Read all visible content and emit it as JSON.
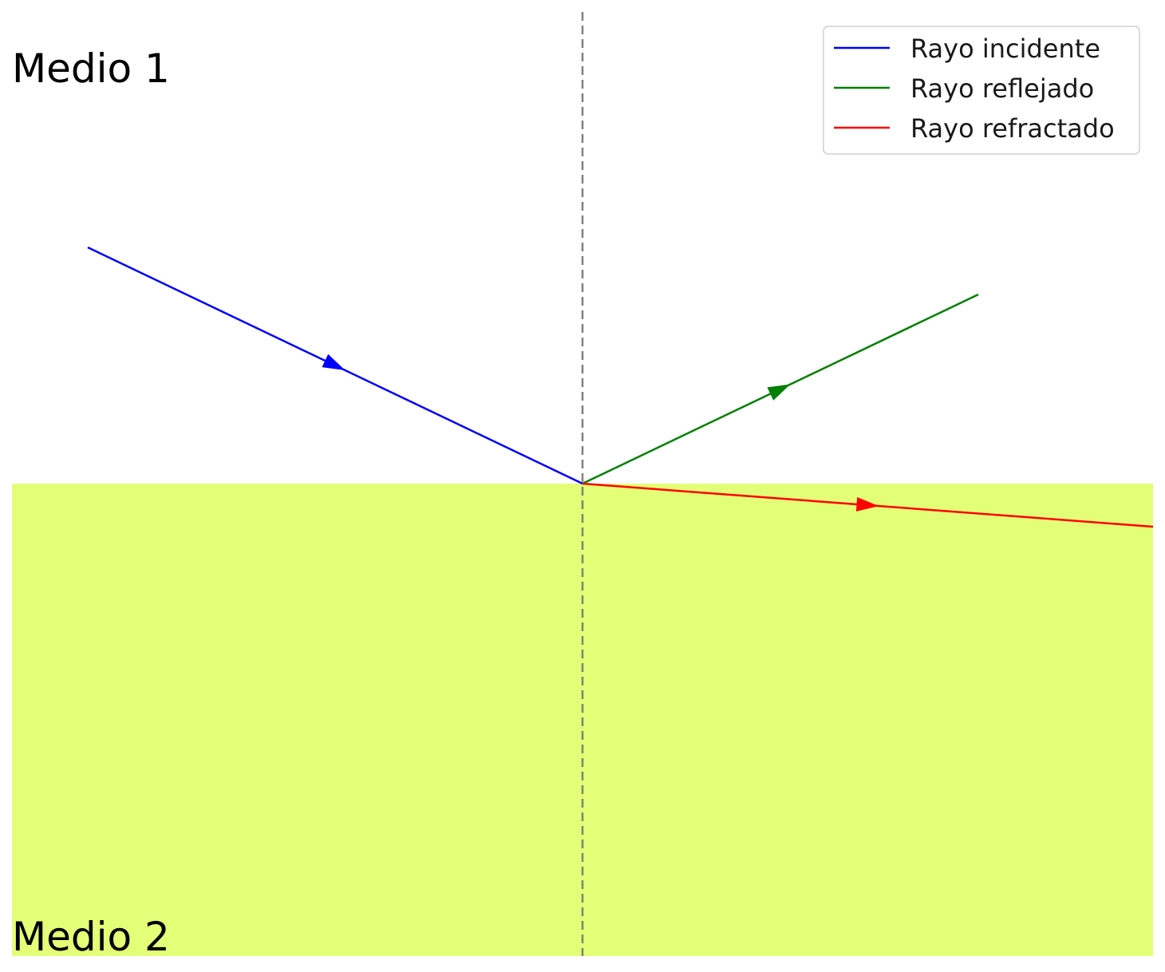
{
  "media": {
    "top_label": "Medio 1",
    "bottom_label": "Medio 2",
    "bottom_fill_color": "#e3ff77",
    "top_fill_color": "#ffffff"
  },
  "normal": {
    "color": "#808080",
    "style": "dashed"
  },
  "rays": [
    {
      "key": "incident",
      "name": "Rayo incidente",
      "color": "#0000ff"
    },
    {
      "key": "reflected",
      "name": "Rayo reflejado",
      "color": "#008000"
    },
    {
      "key": "refracted",
      "name": "Rayo refractado",
      "color": "#ff0000"
    }
  ],
  "legend": {
    "position": "top-right"
  }
}
